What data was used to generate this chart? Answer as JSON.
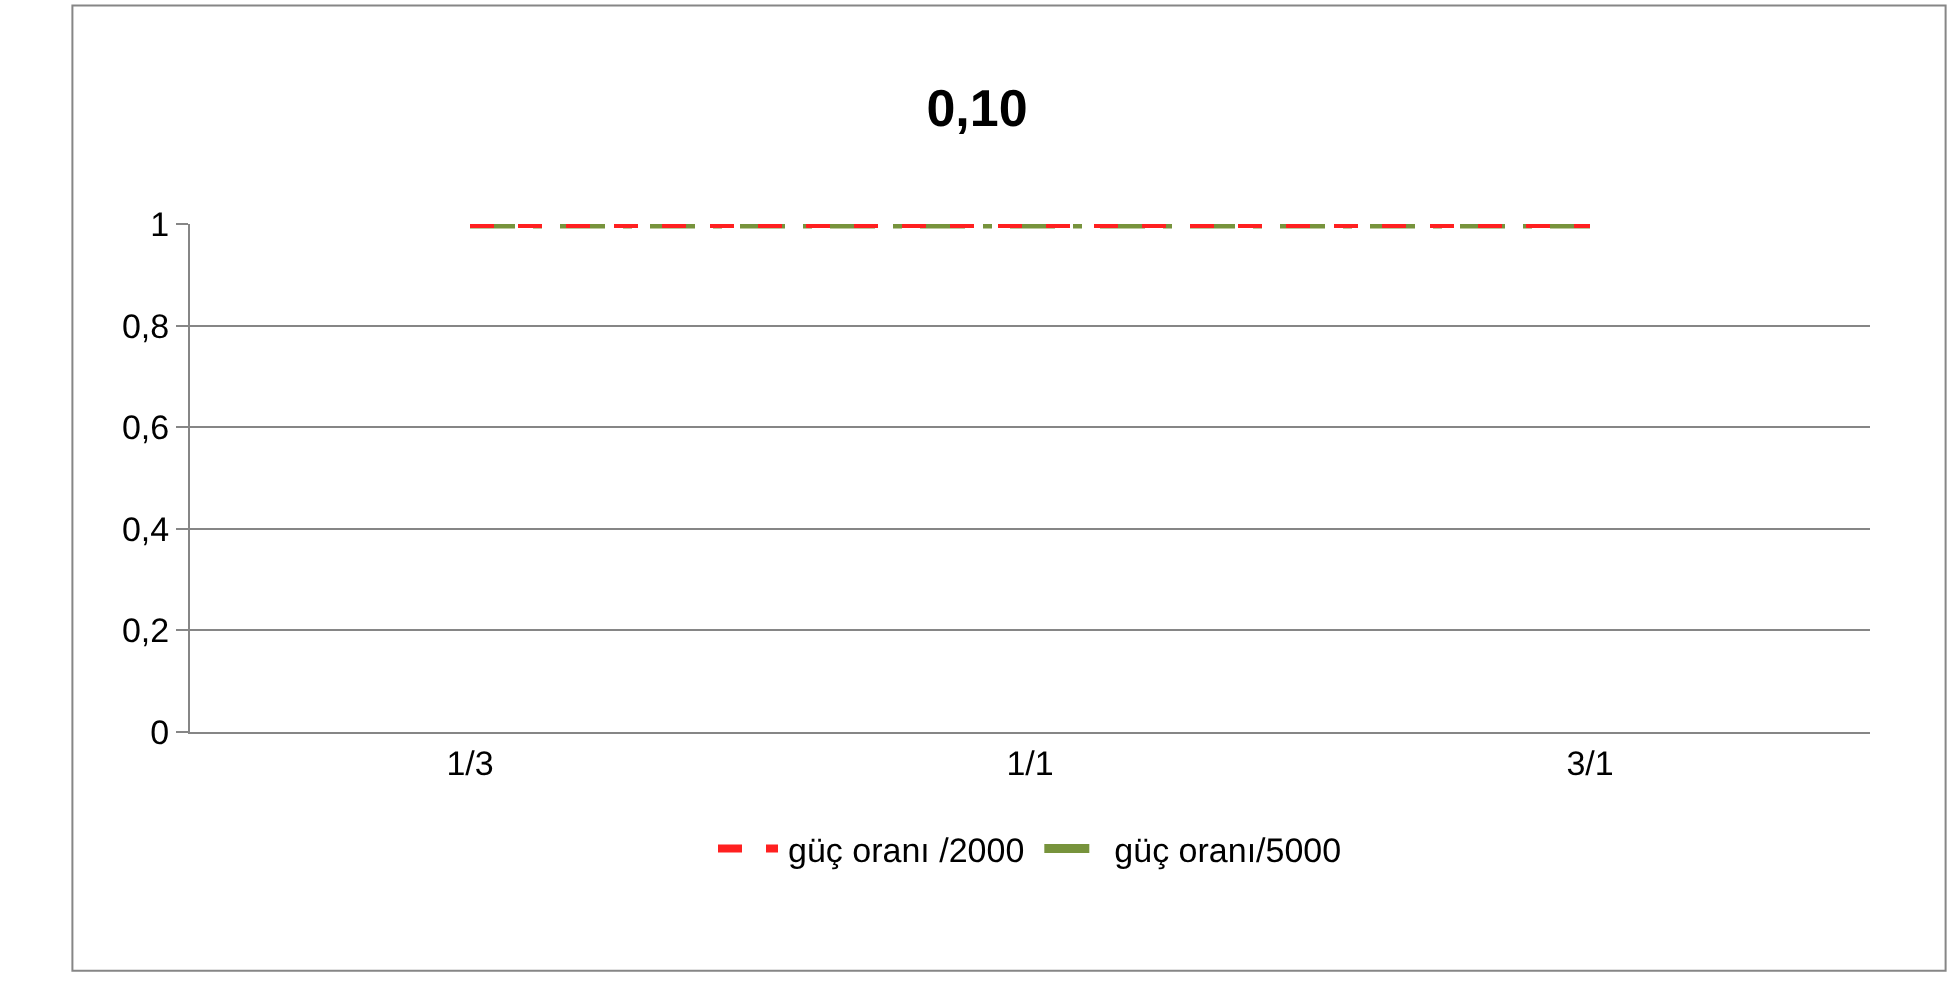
{
  "chart_data": {
    "type": "line",
    "title": "0,10",
    "categories": [
      "1/3",
      "1/1",
      "3/1"
    ],
    "series": [
      {
        "name": "güç oranı /2000",
        "color": "#ff2020",
        "values": [
          1,
          1,
          1
        ],
        "line_style": "dashed"
      },
      {
        "name": "güç oranı/5000",
        "color": "#77933c",
        "values": [
          1,
          1,
          1
        ],
        "line_style": "dashdot"
      }
    ],
    "ylim": [
      0,
      1
    ],
    "yticks": [
      0,
      {
        "value": 0.2,
        "label": "0,2"
      },
      {
        "value": 0.4,
        "label": "0,4"
      },
      {
        "value": 0.6,
        "label": "0,6"
      },
      {
        "value": 0.8,
        "label": "0,8"
      },
      1
    ],
    "grid": "y",
    "legend": "bottom",
    "marker": "none"
  }
}
